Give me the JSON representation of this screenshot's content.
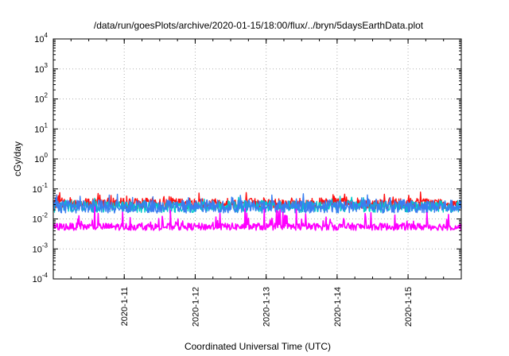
{
  "chart_data": {
    "type": "line",
    "title": "/data/run/goesPlots/archive/2020-01-15/18:00/flux/../bryn/5daysEarthData.plot",
    "xlabel": "Coordinated Universal Time (UTC)",
    "ylabel": "cGy/day",
    "y_scale": "log",
    "ylim": [
      0.0001,
      10000
    ],
    "y_ticks": [
      {
        "base": "10",
        "exp": "-4"
      },
      {
        "base": "10",
        "exp": "-3"
      },
      {
        "base": "10",
        "exp": "-2"
      },
      {
        "base": "10",
        "exp": "-1"
      },
      {
        "base": "10",
        "exp": "0"
      },
      {
        "base": "10",
        "exp": "1"
      },
      {
        "base": "10",
        "exp": "2"
      },
      {
        "base": "10",
        "exp": "3"
      },
      {
        "base": "10",
        "exp": "4"
      }
    ],
    "xlim": [
      "2020-01-10T00:00",
      "2020-01-15T18:00"
    ],
    "x_ticks": [
      "2020-1-11",
      "2020-1-12",
      "2020-1-13",
      "2020-1-14",
      "2020-1-15"
    ],
    "grid": true,
    "series": [
      {
        "color": "#ff1010",
        "level": 0.033,
        "spread": 0.18,
        "spikes": 0.45
      },
      {
        "color": "#00c8c8",
        "level": 0.026,
        "spread": 0.2,
        "spikes": 0.3
      },
      {
        "color": "#3a7df0",
        "level": 0.026,
        "spread": 0.22,
        "spikes": 0.4
      },
      {
        "color": "#ff00ff",
        "level": 0.0055,
        "spread": 0.12,
        "spikes": 0.55
      }
    ]
  }
}
